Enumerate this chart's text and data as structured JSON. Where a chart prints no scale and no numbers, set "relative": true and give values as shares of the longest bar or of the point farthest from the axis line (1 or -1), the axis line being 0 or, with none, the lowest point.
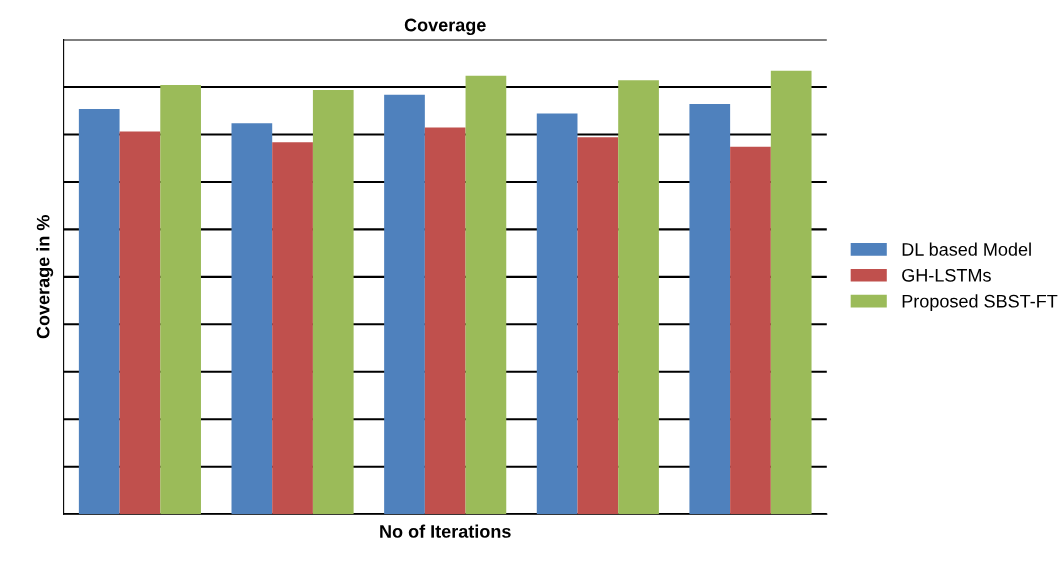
{
  "chart_data": {
    "type": "bar",
    "title": "Coverage",
    "xlabel": "No of Iterations",
    "ylabel": "Coverage in %",
    "categories": [
      null,
      null,
      null,
      null,
      null
    ],
    "relative": true,
    "grid": "y",
    "legend": "right",
    "series": [
      {
        "name": "DL based Model",
        "color": "#4f81bd",
        "values": [
          0.914,
          0.882,
          0.946,
          0.904,
          0.925
        ]
      },
      {
        "name": "GH-LSTMs",
        "color": "#c0504d",
        "values": [
          0.863,
          0.839,
          0.872,
          0.85,
          0.829
        ]
      },
      {
        "name": "Proposed SBST-FT",
        "color": "#9bbb59",
        "values": [
          0.968,
          0.957,
          0.989,
          0.979,
          1.0
        ]
      }
    ]
  }
}
